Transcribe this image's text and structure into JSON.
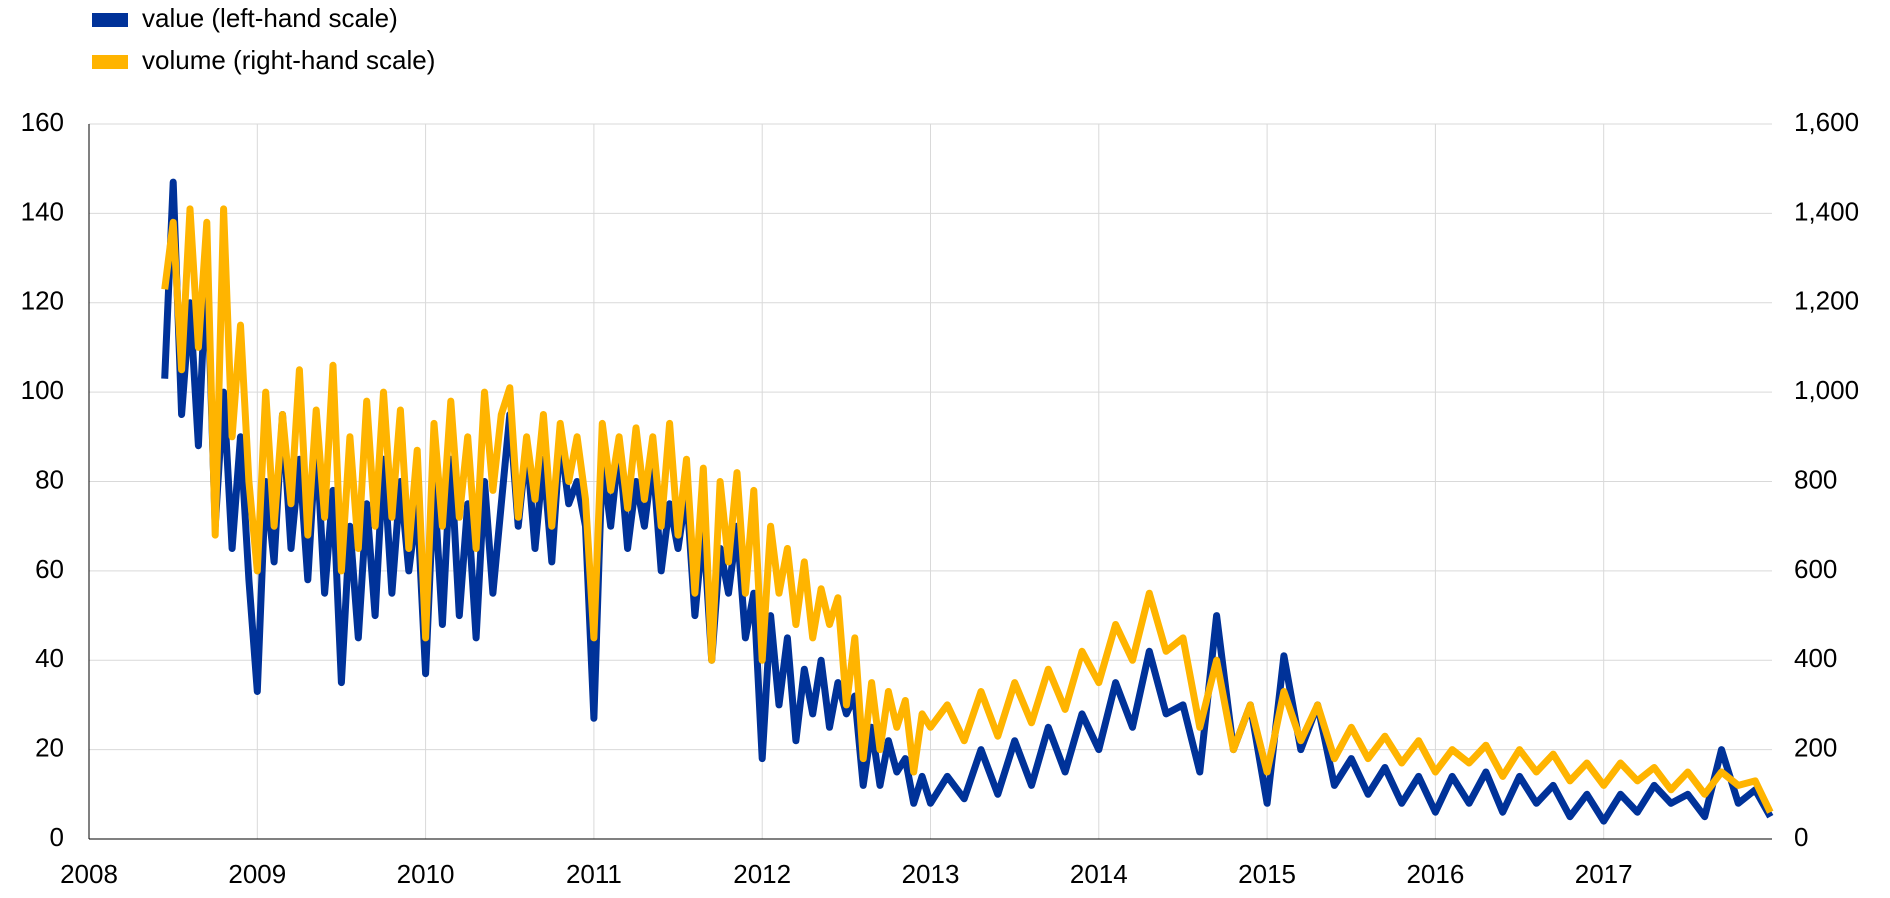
{
  "chart_data": {
    "type": "line",
    "x": [
      2008.45,
      2008.5,
      2008.55,
      2008.6,
      2008.65,
      2008.7,
      2008.75,
      2008.8,
      2008.85,
      2008.9,
      2008.95,
      2009.0,
      2009.05,
      2009.1,
      2009.15,
      2009.2,
      2009.25,
      2009.3,
      2009.35,
      2009.4,
      2009.45,
      2009.5,
      2009.55,
      2009.6,
      2009.65,
      2009.7,
      2009.75,
      2009.8,
      2009.85,
      2009.9,
      2009.95,
      2010.0,
      2010.05,
      2010.1,
      2010.15,
      2010.2,
      2010.25,
      2010.3,
      2010.35,
      2010.4,
      2010.45,
      2010.5,
      2010.55,
      2010.6,
      2010.65,
      2010.7,
      2010.75,
      2010.8,
      2010.85,
      2010.9,
      2010.95,
      2011.0,
      2011.05,
      2011.1,
      2011.15,
      2011.2,
      2011.25,
      2011.3,
      2011.35,
      2011.4,
      2011.45,
      2011.5,
      2011.55,
      2011.6,
      2011.65,
      2011.7,
      2011.75,
      2011.8,
      2011.85,
      2011.9,
      2011.95,
      2012.0,
      2012.05,
      2012.1,
      2012.15,
      2012.2,
      2012.25,
      2012.3,
      2012.35,
      2012.4,
      2012.45,
      2012.5,
      2012.55,
      2012.6,
      2012.65,
      2012.7,
      2012.75,
      2012.8,
      2012.85,
      2012.9,
      2012.95,
      2013.0,
      2013.1,
      2013.2,
      2013.3,
      2013.4,
      2013.5,
      2013.6,
      2013.7,
      2013.8,
      2013.9,
      2014.0,
      2014.1,
      2014.2,
      2014.3,
      2014.4,
      2014.5,
      2014.6,
      2014.7,
      2014.8,
      2014.9,
      2015.0,
      2015.1,
      2015.2,
      2015.3,
      2015.4,
      2015.5,
      2015.6,
      2015.7,
      2015.8,
      2015.9,
      2016.0,
      2016.1,
      2016.2,
      2016.3,
      2016.4,
      2016.5,
      2016.6,
      2016.7,
      2016.8,
      2016.9,
      2017.0,
      2017.1,
      2017.2,
      2017.3,
      2017.4,
      2017.5,
      2017.6,
      2017.7,
      2017.8,
      2017.9,
      2017.99
    ],
    "series": [
      {
        "name": "value (left-hand scale)",
        "color": "#003299",
        "values": [
          103,
          147,
          95,
          120,
          88,
          130,
          70,
          100,
          65,
          90,
          58,
          33,
          80,
          62,
          95,
          65,
          85,
          58,
          90,
          55,
          78,
          35,
          70,
          45,
          75,
          50,
          85,
          55,
          80,
          60,
          75,
          37,
          80,
          48,
          85,
          50,
          75,
          45,
          80,
          55,
          75,
          95,
          70,
          88,
          65,
          85,
          62,
          90,
          75,
          80,
          70,
          27,
          85,
          70,
          88,
          65,
          80,
          70,
          85,
          60,
          75,
          65,
          78,
          50,
          70,
          40,
          65,
          55,
          70,
          45,
          55,
          18,
          50,
          30,
          45,
          22,
          38,
          28,
          40,
          25,
          35,
          28,
          32,
          12,
          25,
          12,
          22,
          15,
          18,
          8,
          14,
          8,
          14,
          9,
          20,
          10,
          22,
          12,
          25,
          15,
          28,
          20,
          35,
          25,
          42,
          28,
          30,
          15,
          50,
          20,
          30,
          8,
          41,
          20,
          30,
          12,
          18,
          10,
          16,
          8,
          14,
          6,
          14,
          8,
          15,
          6,
          14,
          8,
          12,
          5,
          10,
          4,
          10,
          6,
          12,
          8,
          10,
          5,
          20,
          8,
          11,
          5
        ]
      },
      {
        "name": "volume (right-hand scale)",
        "color": "#ffb400",
        "axis": "y2",
        "values": [
          1230,
          1380,
          1050,
          1410,
          1100,
          1380,
          680,
          1410,
          900,
          1150,
          800,
          600,
          1000,
          700,
          950,
          750,
          1050,
          680,
          960,
          720,
          1060,
          600,
          900,
          650,
          980,
          700,
          1000,
          720,
          960,
          650,
          870,
          450,
          930,
          700,
          980,
          720,
          900,
          650,
          1000,
          780,
          950,
          1010,
          720,
          900,
          760,
          950,
          700,
          930,
          800,
          900,
          760,
          450,
          930,
          780,
          900,
          740,
          920,
          760,
          900,
          700,
          930,
          680,
          850,
          550,
          830,
          400,
          800,
          620,
          820,
          550,
          780,
          400,
          700,
          550,
          650,
          480,
          620,
          450,
          560,
          480,
          540,
          300,
          450,
          180,
          350,
          200,
          330,
          250,
          310,
          150,
          280,
          250,
          300,
          220,
          330,
          230,
          350,
          260,
          380,
          290,
          420,
          350,
          480,
          400,
          550,
          420,
          450,
          250,
          400,
          200,
          300,
          150,
          330,
          220,
          300,
          180,
          250,
          180,
          230,
          170,
          220,
          150,
          200,
          170,
          210,
          140,
          200,
          150,
          190,
          130,
          170,
          120,
          170,
          130,
          160,
          110,
          150,
          100,
          150,
          120,
          130,
          60
        ]
      }
    ],
    "xlim": [
      2008,
      2018
    ],
    "xticks": [
      2008,
      2009,
      2010,
      2011,
      2012,
      2013,
      2014,
      2015,
      2016,
      2017
    ],
    "ylim": [
      0,
      160
    ],
    "yticks": [
      0,
      20,
      40,
      60,
      80,
      100,
      120,
      140,
      160
    ],
    "y2lim": [
      0,
      1600
    ],
    "y2ticks": [
      0,
      200,
      400,
      600,
      800,
      {
        "value": 1000,
        "label": "1,000"
      },
      {
        "value": 1200,
        "label": "1,200"
      },
      {
        "value": 1400,
        "label": "1,400"
      },
      {
        "value": 1600,
        "label": "1,600"
      }
    ],
    "grid": true
  }
}
